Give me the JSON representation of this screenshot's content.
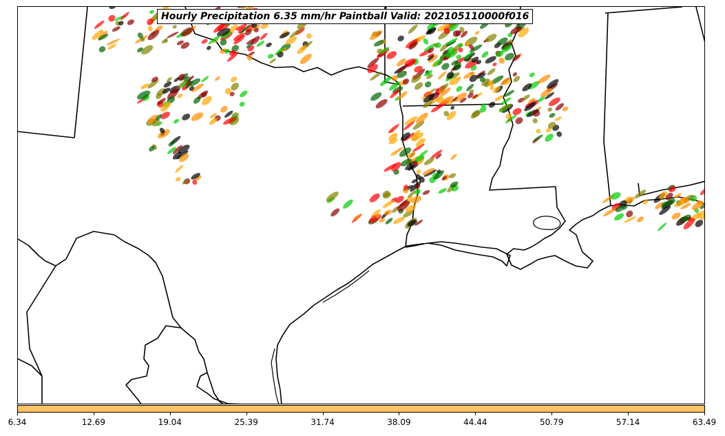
{
  "title": "Hourly Precipitation 6.35 mm/hr Paintball Valid: 202105110000f016",
  "colorbar": {
    "color": "#ffc266",
    "ticks": [
      "6.34",
      "12.69",
      "19.04",
      "25.39",
      "31.74",
      "38.09",
      "44.44",
      "50.79",
      "57.14",
      "63.49"
    ]
  },
  "paintball_colors": [
    "#ff8c00",
    "#ff0000",
    "#8b0000",
    "#00cc00",
    "#006400",
    "#808000",
    "#000000",
    "#ffa500"
  ]
}
